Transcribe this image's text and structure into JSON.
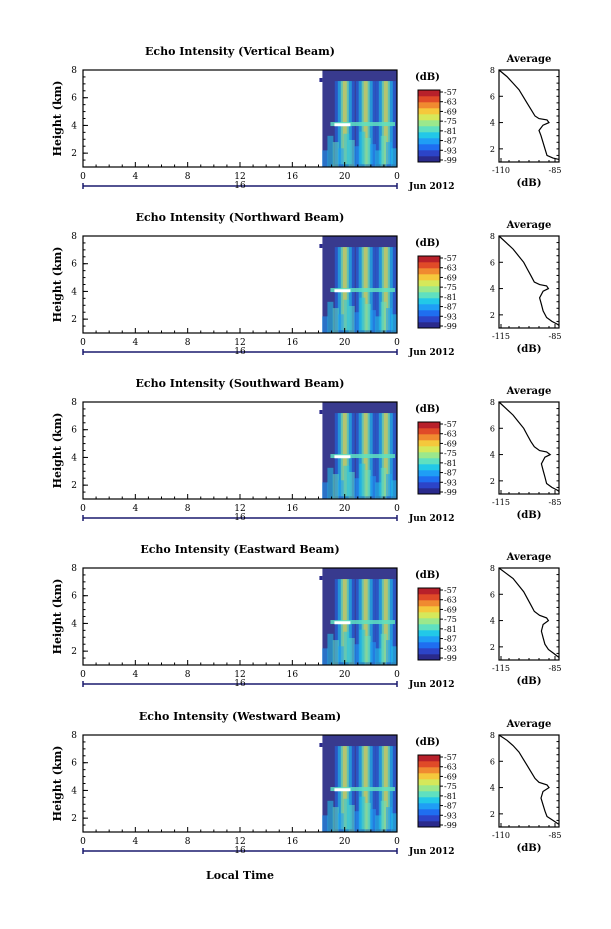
{
  "common": {
    "ylabel": "Height (km)",
    "y_ticks": [
      "2",
      "4",
      "6",
      "8"
    ],
    "x_ticks": [
      "0",
      "4",
      "8",
      "12",
      "16",
      "20",
      "0"
    ],
    "date_day": "16",
    "date_label": "Jun 2012",
    "xlabel": "Local Time",
    "colorbar_unit": "(dB)",
    "colorbar_ticks": [
      "-57",
      "-63",
      "-69",
      "-75",
      "-81",
      "-87",
      "-93",
      "-99"
    ],
    "avg_title": "Average",
    "avg_xlabel": "(dB)",
    "avg_y_ticks": [
      "2",
      "4",
      "6",
      "8"
    ]
  },
  "colors": {
    "colormap": [
      "#2a2a8c",
      "#2c44c8",
      "#1f6ef0",
      "#1f9ef5",
      "#22c8e8",
      "#5fe0c0",
      "#9be88c",
      "#d6e85a",
      "#f5c83c",
      "#f08a30",
      "#e04a28",
      "#b8202a"
    ]
  },
  "chart_data": [
    {
      "type": "heatmap",
      "title": "Echo Intensity (Vertical Beam)",
      "xlabel": "Local Time",
      "ylabel": "Height (km)",
      "xlim": [
        0,
        24
      ],
      "ylim": [
        1,
        8
      ],
      "data_start_hour": 18.3,
      "clim": [
        -99,
        -57
      ],
      "colorbar_label": "(dB)",
      "average_profile": {
        "title": "Average",
        "xlabel": "(dB)",
        "x_ticks": [
          "-110",
          "-85"
        ],
        "xlim": [
          -112,
          -82
        ],
        "points": [
          [
            -112,
            8.0
          ],
          [
            -108,
            7.5
          ],
          [
            -105,
            7.0
          ],
          [
            -102,
            6.5
          ],
          [
            -100,
            6.0
          ],
          [
            -98,
            5.5
          ],
          [
            -96,
            5.0
          ],
          [
            -94,
            4.5
          ],
          [
            -92,
            4.3
          ],
          [
            -88,
            4.2
          ],
          [
            -87,
            4.0
          ],
          [
            -90,
            3.8
          ],
          [
            -92,
            3.4
          ],
          [
            -91,
            3.0
          ],
          [
            -90,
            2.5
          ],
          [
            -89,
            2.0
          ],
          [
            -88,
            1.5
          ],
          [
            -85,
            1.3
          ],
          [
            -82,
            1.2
          ]
        ]
      }
    },
    {
      "type": "heatmap",
      "title": "Echo Intensity (Northward Beam)",
      "xlabel": "Local Time",
      "ylabel": "Height (km)",
      "xlim": [
        0,
        24
      ],
      "ylim": [
        1,
        8
      ],
      "data_start_hour": 18.3,
      "clim": [
        -99,
        -57
      ],
      "colorbar_label": "(dB)",
      "average_profile": {
        "title": "Average",
        "xlabel": "(dB)",
        "x_ticks": [
          "-115",
          "-85"
        ],
        "xlim": [
          -116,
          -82
        ],
        "points": [
          [
            -116,
            8.0
          ],
          [
            -112,
            7.5
          ],
          [
            -108,
            7.0
          ],
          [
            -105,
            6.5
          ],
          [
            -102,
            6.0
          ],
          [
            -100,
            5.5
          ],
          [
            -98,
            5.0
          ],
          [
            -96,
            4.5
          ],
          [
            -93,
            4.3
          ],
          [
            -89,
            4.2
          ],
          [
            -88,
            4.0
          ],
          [
            -91,
            3.8
          ],
          [
            -93,
            3.3
          ],
          [
            -92,
            2.8
          ],
          [
            -91,
            2.3
          ],
          [
            -89,
            1.8
          ],
          [
            -86,
            1.5
          ],
          [
            -83,
            1.3
          ],
          [
            -82,
            1.2
          ]
        ]
      }
    },
    {
      "type": "heatmap",
      "title": "Echo Intensity (Southward Beam)",
      "xlabel": "Local Time",
      "ylabel": "Height (km)",
      "xlim": [
        0,
        24
      ],
      "ylim": [
        1,
        8
      ],
      "data_start_hour": 18.3,
      "clim": [
        -99,
        -57
      ],
      "colorbar_label": "(dB)",
      "average_profile": {
        "title": "Average",
        "xlabel": "(dB)",
        "x_ticks": [
          "-115",
          "-85"
        ],
        "xlim": [
          -116,
          -82
        ],
        "points": [
          [
            -116,
            8.0
          ],
          [
            -112,
            7.5
          ],
          [
            -108,
            7.0
          ],
          [
            -105,
            6.5
          ],
          [
            -102,
            6.0
          ],
          [
            -100,
            5.5
          ],
          [
            -98,
            5.0
          ],
          [
            -96,
            4.6
          ],
          [
            -93,
            4.3
          ],
          [
            -89,
            4.2
          ],
          [
            -87,
            4.0
          ],
          [
            -90,
            3.8
          ],
          [
            -92,
            3.3
          ],
          [
            -91,
            2.8
          ],
          [
            -90,
            2.3
          ],
          [
            -89,
            1.8
          ],
          [
            -86,
            1.5
          ],
          [
            -83,
            1.3
          ],
          [
            -82,
            1.2
          ]
        ]
      }
    },
    {
      "type": "heatmap",
      "title": "Echo Intensity (Eastward Beam)",
      "xlabel": "Local Time",
      "ylabel": "Height (km)",
      "xlim": [
        0,
        24
      ],
      "ylim": [
        1,
        8
      ],
      "data_start_hour": 18.3,
      "clim": [
        -99,
        -57
      ],
      "colorbar_label": "(dB)",
      "average_profile": {
        "title": "Average",
        "xlabel": "(dB)",
        "x_ticks": [
          "-115",
          "-85"
        ],
        "xlim": [
          -116,
          -82
        ],
        "points": [
          [
            -116,
            8.0
          ],
          [
            -112,
            7.6
          ],
          [
            -108,
            7.2
          ],
          [
            -105,
            6.7
          ],
          [
            -102,
            6.2
          ],
          [
            -100,
            5.7
          ],
          [
            -98,
            5.2
          ],
          [
            -96,
            4.7
          ],
          [
            -93,
            4.4
          ],
          [
            -89,
            4.2
          ],
          [
            -88,
            4.0
          ],
          [
            -91,
            3.7
          ],
          [
            -92,
            3.2
          ],
          [
            -91,
            2.7
          ],
          [
            -90,
            2.2
          ],
          [
            -88,
            1.8
          ],
          [
            -85,
            1.5
          ],
          [
            -83,
            1.3
          ],
          [
            -82,
            1.2
          ]
        ]
      }
    },
    {
      "type": "heatmap",
      "title": "Echo Intensity (Westward Beam)",
      "xlabel": "Local Time",
      "ylabel": "Height (km)",
      "xlim": [
        0,
        24
      ],
      "ylim": [
        1,
        8
      ],
      "data_start_hour": 18.3,
      "clim": [
        -99,
        -57
      ],
      "colorbar_label": "(dB)",
      "average_profile": {
        "title": "Average",
        "xlabel": "(dB)",
        "x_ticks": [
          "-110",
          "-85"
        ],
        "xlim": [
          -112,
          -82
        ],
        "points": [
          [
            -112,
            8.0
          ],
          [
            -108,
            7.6
          ],
          [
            -105,
            7.2
          ],
          [
            -102,
            6.7
          ],
          [
            -100,
            6.2
          ],
          [
            -98,
            5.7
          ],
          [
            -96,
            5.2
          ],
          [
            -94,
            4.7
          ],
          [
            -92,
            4.4
          ],
          [
            -88,
            4.2
          ],
          [
            -87,
            4.0
          ],
          [
            -90,
            3.7
          ],
          [
            -91,
            3.2
          ],
          [
            -90,
            2.7
          ],
          [
            -89,
            2.2
          ],
          [
            -88,
            1.8
          ],
          [
            -85,
            1.5
          ],
          [
            -83,
            1.3
          ],
          [
            -82,
            1.2
          ]
        ]
      }
    }
  ]
}
